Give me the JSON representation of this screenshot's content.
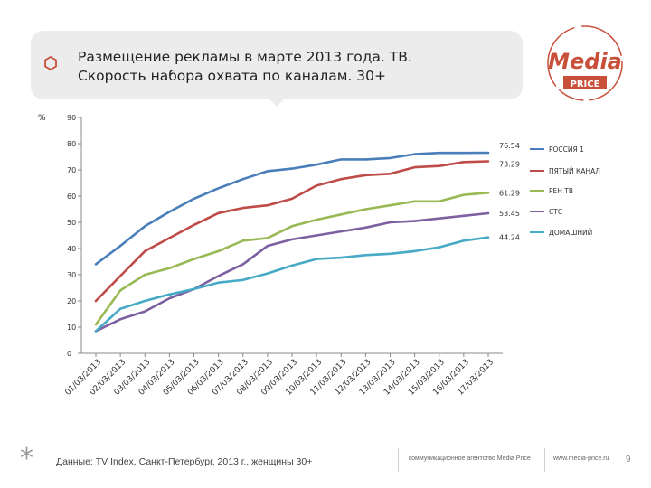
{
  "header": {
    "title_line1": "Размещение рекламы в марте 2013 года. ТВ.",
    "title_line2": "Скорость набора охвата по каналам. 30+"
  },
  "logo": {
    "word": "Media",
    "tag": "PRICE",
    "color": "#c8503a"
  },
  "footer": {
    "source": "Данные: TV Index, Санкт-Петербург, 2013 г., женщины 30+",
    "agency": "коммуникационное агентство Media Price",
    "site": "www.media-price.ru",
    "page": "9"
  },
  "colors": {
    "accent": "#c8503a"
  },
  "chart_data": {
    "type": "line",
    "ylabel": "%",
    "ylim": [
      0,
      90
    ],
    "yticks": [
      0,
      10,
      20,
      30,
      40,
      50,
      60,
      70,
      80,
      90
    ],
    "categories": [
      "01/03/2013",
      "02/03/2013",
      "03/03/2013",
      "04/03/2013",
      "05/03/2013",
      "06/03/2013",
      "07/03/2013",
      "08/03/2013",
      "09/03/2013",
      "10/03/2013",
      "11/03/2013",
      "12/03/2013",
      "13/03/2013",
      "14/03/2013",
      "15/03/2013",
      "16/03/2013",
      "17/03/2013"
    ],
    "series": [
      {
        "name": "РОССИЯ 1",
        "color": "#4a7ebb",
        "end_label": "76.54",
        "values": [
          34,
          41,
          48.5,
          54,
          59,
          63,
          66.5,
          69.5,
          70.5,
          72,
          74,
          74,
          74.5,
          76,
          76.5,
          76.5,
          76.54
        ]
      },
      {
        "name": "ПЯТЫЙ КАНАЛ",
        "color": "#be4b48",
        "end_label": "73.29",
        "values": [
          20,
          29.5,
          39,
          44,
          49,
          53.5,
          55.5,
          56.5,
          59,
          64,
          66.5,
          68,
          68.5,
          71,
          71.5,
          73,
          73.29
        ]
      },
      {
        "name": "РЕН ТВ",
        "color": "#98b954",
        "end_label": "61.29",
        "values": [
          11,
          24,
          30,
          32.5,
          36,
          39,
          43,
          44,
          48.5,
          51,
          53,
          55,
          56.5,
          58,
          58,
          60.5,
          61.29
        ]
      },
      {
        "name": "СТС",
        "color": "#7d60a0",
        "end_label": "53.45",
        "values": [
          8.5,
          13,
          16,
          21,
          24.5,
          29.5,
          34,
          41,
          43.5,
          45,
          46.5,
          48,
          50,
          50.5,
          51.5,
          52.5,
          53.45
        ]
      },
      {
        "name": "ДОМАШНИЙ",
        "color": "#46aac5",
        "end_label": "44.24",
        "values": [
          8.5,
          17,
          20,
          22.5,
          24.5,
          27,
          28,
          30.5,
          33.5,
          36,
          36.5,
          37.5,
          38,
          39,
          40.5,
          43,
          44.24
        ]
      }
    ],
    "grid": false,
    "legend_position": "right"
  }
}
